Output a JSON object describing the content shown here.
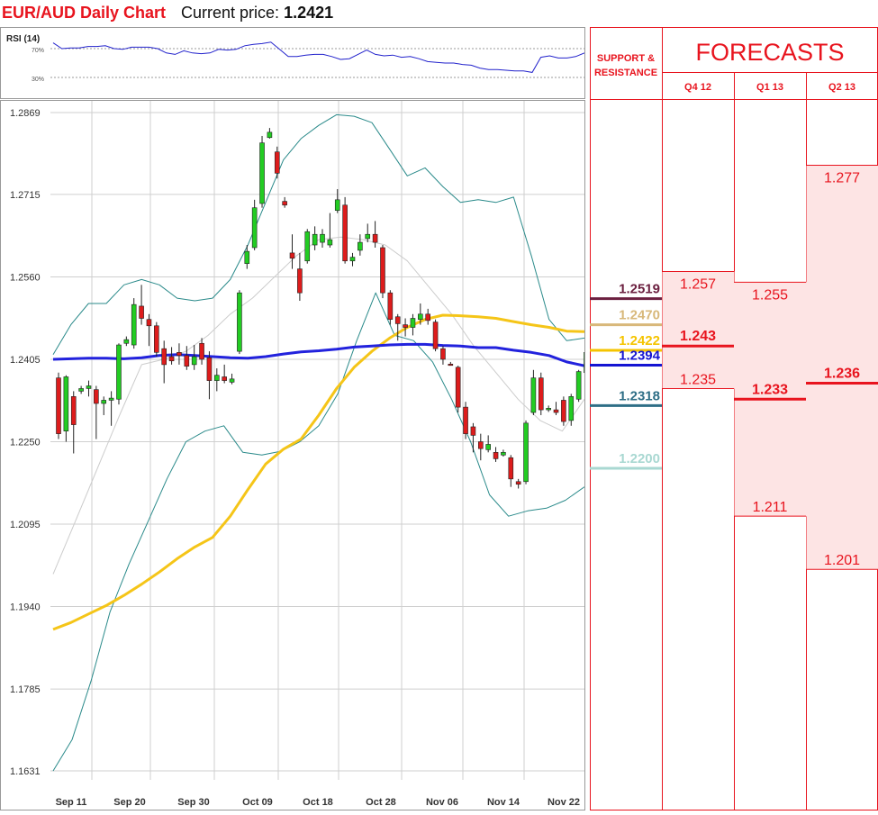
{
  "header": {
    "title": "EUR/AUD Daily Chart",
    "price_label": "Current price:",
    "price_value": "1.2421"
  },
  "rsi": {
    "label": "RSI (14)",
    "levels": [
      "70%",
      "30%"
    ],
    "values": [
      78,
      70,
      71,
      71,
      73,
      73,
      74,
      70,
      69,
      72,
      72,
      72,
      70,
      64,
      62,
      67,
      64,
      63,
      64,
      69,
      68,
      69,
      74,
      76,
      77,
      79,
      69,
      59,
      59,
      61,
      62,
      62,
      59,
      55,
      56,
      62,
      68,
      62,
      60,
      61,
      58,
      59,
      56,
      52,
      51,
      50,
      50,
      48,
      47,
      43,
      41,
      41,
      40,
      39,
      39,
      37,
      58,
      60,
      57,
      57,
      59,
      64
    ]
  },
  "chart_data": {
    "type": "candlestick",
    "title": "EUR/AUD Daily Chart",
    "y_ticks": [
      "1.2869",
      "1.2715",
      "1.2560",
      "1.2405",
      "1.2250",
      "1.2095",
      "1.1940",
      "1.1785",
      "1.1631"
    ],
    "ylim": [
      1.1631,
      1.2869
    ],
    "x_ticks": [
      "Sep 11",
      "Sep 20",
      "Sep 30",
      "Oct 09",
      "Oct 18",
      "Oct 28",
      "Nov 06",
      "Nov 14",
      "Nov 22"
    ],
    "grid": true,
    "candles": [
      [
        1.237,
        1.2265,
        1.238,
        1.2255
      ],
      [
        1.227,
        1.2372,
        1.2375,
        1.225
      ],
      [
        1.2335,
        1.2282,
        1.2345,
        1.2228
      ],
      [
        1.2345,
        1.235,
        1.2355,
        1.234
      ],
      [
        1.235,
        1.2355,
        1.2365,
        1.2335
      ],
      [
        1.2348,
        1.2322,
        1.2355,
        1.2255
      ],
      [
        1.2322,
        1.2328,
        1.2335,
        1.23
      ],
      [
        1.2328,
        1.2332,
        1.2345,
        1.228
      ],
      [
        1.233,
        1.2432,
        1.2435,
        1.232
      ],
      [
        1.2435,
        1.2442,
        1.2448,
        1.243
      ],
      [
        1.2432,
        1.2508,
        1.252,
        1.2425
      ],
      [
        1.2505,
        1.2482,
        1.2545,
        1.247
      ],
      [
        1.248,
        1.2468,
        1.249,
        1.243
      ],
      [
        1.2468,
        1.2418,
        1.2475,
        1.241
      ],
      [
        1.2425,
        1.2395,
        1.244,
        1.236
      ],
      [
        1.241,
        1.2402,
        1.2428,
        1.2395
      ],
      [
        1.2418,
        1.2412,
        1.2435,
        1.2395
      ],
      [
        1.2412,
        1.2392,
        1.243,
        1.2385
      ],
      [
        1.2395,
        1.241,
        1.2432,
        1.2385
      ],
      [
        1.2435,
        1.2405,
        1.2445,
        1.2395
      ],
      [
        1.2408,
        1.2365,
        1.242,
        1.233
      ],
      [
        1.2365,
        1.2375,
        1.2388,
        1.2345
      ],
      [
        1.2372,
        1.2365,
        1.2395,
        1.236
      ],
      [
        1.2362,
        1.2368,
        1.2378,
        1.2358
      ],
      [
        1.242,
        1.253,
        1.2535,
        1.2415
      ],
      [
        1.2585,
        1.2608,
        1.262,
        1.2575
      ],
      [
        1.2615,
        1.269,
        1.2705,
        1.261
      ],
      [
        1.2698,
        1.2812,
        1.2825,
        1.269
      ],
      [
        1.2822,
        1.2832,
        1.284,
        1.282
      ],
      [
        1.2795,
        1.2755,
        1.2805,
        1.2745
      ],
      [
        1.2702,
        1.2695,
        1.271,
        1.269
      ],
      [
        1.2605,
        1.2595,
        1.264,
        1.2575
      ],
      [
        1.2575,
        1.253,
        1.2605,
        1.2515
      ],
      [
        1.259,
        1.2645,
        1.265,
        1.2585
      ],
      [
        1.262,
        1.264,
        1.2655,
        1.261
      ],
      [
        1.2625,
        1.264,
        1.265,
        1.2615
      ],
      [
        1.262,
        1.263,
        1.268,
        1.2615
      ],
      [
        1.2685,
        1.2705,
        1.2725,
        1.268
      ],
      [
        1.2695,
        1.259,
        1.271,
        1.2585
      ],
      [
        1.259,
        1.2597,
        1.2605,
        1.258
      ],
      [
        1.261,
        1.2625,
        1.264,
        1.26
      ],
      [
        1.2632,
        1.264,
        1.266,
        1.2625
      ],
      [
        1.264,
        1.2625,
        1.2665,
        1.2615
      ],
      [
        1.2615,
        1.253,
        1.262,
        1.252
      ],
      [
        1.253,
        1.248,
        1.2535,
        1.247
      ],
      [
        1.2485,
        1.2472,
        1.249,
        1.244
      ],
      [
        1.247,
        1.2465,
        1.2482,
        1.2448
      ],
      [
        1.2465,
        1.2482,
        1.249,
        1.245
      ],
      [
        1.248,
        1.249,
        1.251,
        1.247
      ],
      [
        1.249,
        1.2478,
        1.25,
        1.247
      ],
      [
        1.2475,
        1.2425,
        1.248,
        1.242
      ],
      [
        1.2425,
        1.2405,
        1.243,
        1.2395
      ],
      [
        1.2396,
        1.2395,
        1.24,
        1.2393
      ],
      [
        1.239,
        1.2315,
        1.2393,
        1.2305
      ],
      [
        1.2315,
        1.2265,
        1.2325,
        1.2255
      ],
      [
        1.2278,
        1.2262,
        1.2285,
        1.223
      ],
      [
        1.225,
        1.2237,
        1.2265,
        1.2215
      ],
      [
        1.2235,
        1.2245,
        1.2262,
        1.223
      ],
      [
        1.223,
        1.2218,
        1.224,
        1.2212
      ],
      [
        1.2225,
        1.223,
        1.2235,
        1.2222
      ],
      [
        1.222,
        1.218,
        1.2225,
        1.2165
      ],
      [
        1.2175,
        1.217,
        1.218,
        1.2162
      ],
      [
        1.2175,
        1.2285,
        1.229,
        1.217
      ],
      [
        1.2305,
        1.237,
        1.2385,
        1.23
      ],
      [
        1.237,
        1.231,
        1.238,
        1.23
      ],
      [
        1.231,
        1.2313,
        1.2318,
        1.2306
      ],
      [
        1.231,
        1.2305,
        1.2325,
        1.23
      ],
      [
        1.2328,
        1.2288,
        1.2335,
        1.228
      ],
      [
        1.229,
        1.2335,
        1.234,
        1.228
      ],
      [
        1.233,
        1.2382,
        1.2385,
        1.2325
      ],
      [
        1.238,
        1.2418,
        1.2425,
        1.2375
      ]
    ],
    "ma_blue": [
      1.2405,
      1.2406,
      1.2407,
      1.2407,
      1.2406,
      1.2408,
      1.2412,
      1.2414,
      1.2412,
      1.241,
      1.2408,
      1.2407,
      1.241,
      1.2415,
      1.2419,
      1.2421,
      1.2424,
      1.2428,
      1.243,
      1.2432,
      1.2433,
      1.2433,
      1.2431,
      1.243,
      1.2427,
      1.2427,
      1.2422,
      1.2418,
      1.2412,
      1.24,
      1.2393
    ],
    "ma_yellow": [
      1.1897,
      1.191,
      1.1926,
      1.1942,
      1.1961,
      1.1982,
      1.2005,
      1.203,
      1.2052,
      1.207,
      1.211,
      1.216,
      1.2208,
      1.2236,
      1.2255,
      1.23,
      1.235,
      1.239,
      1.242,
      1.2445,
      1.2465,
      1.248,
      1.2488,
      1.2487,
      1.2485,
      1.2482,
      1.2476,
      1.247,
      1.2465,
      1.2458,
      1.2457
    ],
    "ma_grey": [
      1.2001,
      1.21,
      1.22,
      1.23,
      1.2395,
      1.2405,
      1.242,
      1.245,
      1.249,
      1.252,
      1.256,
      1.26,
      1.263,
      1.2635,
      1.263,
      1.262,
      1.259,
      1.254,
      1.249,
      1.243,
      1.238,
      1.233,
      1.229,
      1.227,
      1.233
    ],
    "bb_upper": [
      1.2414,
      1.247,
      1.251,
      1.251,
      1.2545,
      1.2555,
      1.2545,
      1.252,
      1.2515,
      1.252,
      1.2555,
      1.262,
      1.27,
      1.278,
      1.282,
      1.2845,
      1.2865,
      1.2862,
      1.285,
      1.28,
      1.275,
      1.2765,
      1.273,
      1.27,
      1.2705,
      1.27,
      1.271,
      1.26,
      1.248,
      1.244,
      1.2445
    ],
    "bb_lower": [
      1.1631,
      1.169,
      1.18,
      1.193,
      1.202,
      1.21,
      1.218,
      1.225,
      1.227,
      1.228,
      1.223,
      1.2225,
      1.2232,
      1.225,
      1.228,
      1.234,
      1.244,
      1.253,
      1.245,
      1.244,
      1.24,
      1.233,
      1.225,
      1.215,
      1.211,
      1.212,
      1.2125,
      1.214,
      1.2165
    ]
  },
  "levels_panel": {
    "header": "SUPPORT & RESISTANCE",
    "levels": [
      {
        "value": "1.2519",
        "price": 1.2519,
        "color": "#6b1f3f"
      },
      {
        "value": "1.2470",
        "price": 1.247,
        "color": "#d8b87a"
      },
      {
        "value": "1.2422",
        "price": 1.2422,
        "color": "#f5c400"
      },
      {
        "value": "1.2394",
        "price": 1.2394,
        "color": "#1414d2"
      },
      {
        "value": "1.2318",
        "price": 1.2318,
        "color": "#2e6e86"
      },
      {
        "value": "1.2200",
        "price": 1.22,
        "color": "#a9d8d2"
      }
    ]
  },
  "forecasts": {
    "title": "FORECASTS",
    "columns": [
      {
        "label": "Q4 12",
        "high": "1.257",
        "mid": "1.243",
        "low": "1.235",
        "high_v": 1.257,
        "mid_v": 1.243,
        "low_v": 1.235
      },
      {
        "label": "Q1 13",
        "high": "1.255",
        "mid": "1.233",
        "low": "1.211",
        "high_v": 1.255,
        "mid_v": 1.233,
        "low_v": 1.211
      },
      {
        "label": "Q2 13",
        "high": "1.277",
        "mid": "1.236",
        "low": "1.201",
        "high_v": 1.277,
        "mid_v": 1.236,
        "low_v": 1.201
      }
    ]
  },
  "colors": {
    "up_candle": "#22cc22",
    "down_candle": "#dd1c1c",
    "ma_blue": "#2222dd",
    "ma_yellow": "#f5c518",
    "bollinger": "#2a8a8a",
    "ma_grey": "#cccccc",
    "red": "#e8141e",
    "forecast_fill": "#fde4e4"
  }
}
